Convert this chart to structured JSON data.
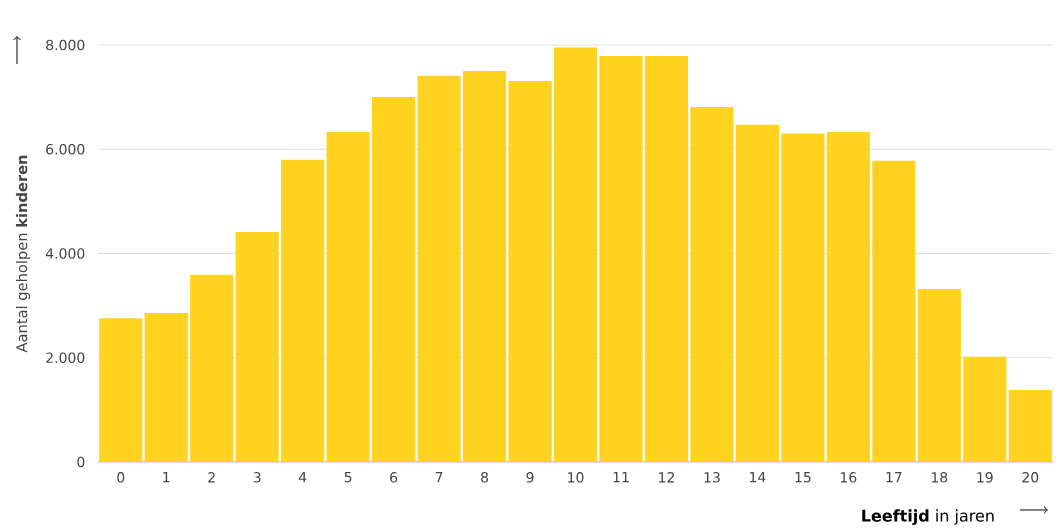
{
  "chart_data": {
    "type": "bar",
    "xlabel": "**Leeftijd** in jaren",
    "ylabel": "Aantal geholpen **kinderen**",
    "categories": [
      "0",
      "1",
      "2",
      "3",
      "4",
      "5",
      "6",
      "7",
      "8",
      "9",
      "10",
      "11",
      "12",
      "13",
      "14",
      "15",
      "16",
      "17",
      "18",
      "19",
      "20"
    ],
    "values": [
      2760,
      2860,
      3590,
      4410,
      5800,
      6330,
      7000,
      7410,
      7500,
      7310,
      7950,
      7790,
      7790,
      6810,
      6470,
      6300,
      6330,
      5780,
      3320,
      2020,
      1380
    ],
    "color": "#ffd320",
    "ylim": [
      0,
      8000
    ],
    "yticks": [
      0,
      {
        "value": 2000,
        "label": "2.000"
      },
      {
        "value": 4000,
        "label": "4.000"
      },
      {
        "value": 6000,
        "label": "6.000"
      },
      {
        "value": 8000,
        "label": "8.000"
      }
    ],
    "grid": "y"
  }
}
